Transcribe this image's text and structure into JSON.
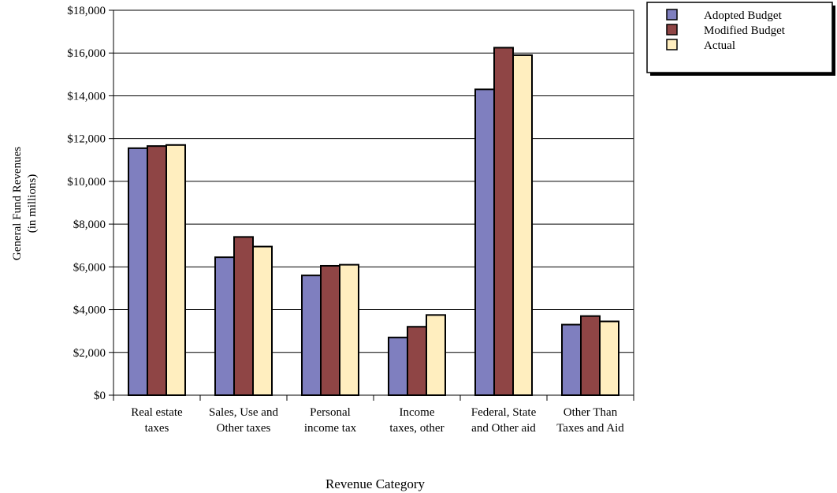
{
  "chart_data": {
    "type": "bar",
    "xlabel": "Revenue Category",
    "ylabel_lines": [
      "General Fund Revenues",
      "(in millions)"
    ],
    "ylim": [
      0,
      18000
    ],
    "ytick_step": 2000,
    "ytick_labels": [
      "$0",
      "$2,000",
      "$4,000",
      "$6,000",
      "$8,000",
      "$10,000",
      "$12,000",
      "$14,000",
      "$16,000",
      "$18,000"
    ],
    "grid": true,
    "legend_position": "top-right",
    "categories": [
      [
        "Real estate",
        "taxes"
      ],
      [
        "Sales, Use and",
        "Other taxes"
      ],
      [
        "Personal",
        "income tax"
      ],
      [
        "Income",
        "taxes, other"
      ],
      [
        "Federal, State",
        "and Other aid"
      ],
      [
        "Other Than",
        "Taxes and Aid"
      ]
    ],
    "series": [
      {
        "name": "Adopted Budget",
        "color": "#7f7fbf",
        "values": [
          11550,
          6450,
          5600,
          2700,
          14300,
          3300
        ]
      },
      {
        "name": "Modified Budget",
        "color": "#8f4545",
        "values": [
          11650,
          7400,
          6050,
          3200,
          16250,
          3700
        ]
      },
      {
        "name": "Actual",
        "color": "#ffeebf",
        "values": [
          11700,
          6950,
          6100,
          3750,
          15900,
          3450
        ]
      }
    ]
  }
}
